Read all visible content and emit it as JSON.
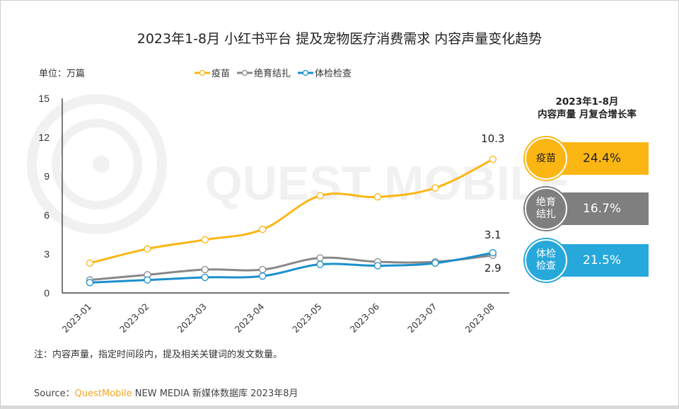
{
  "title": "2023年1-8月 小红书平台 提及宠物医疗消费需求 内容声量变化趋势",
  "unit_label": "单位：万篇",
  "side_panel": {
    "title_line1": "2023年1-8月",
    "title_line2": "内容声量 月复合增长率",
    "badges": [
      {
        "label_line1": "疫苗",
        "label_line2": "",
        "value": "24.4%",
        "color": "#fbb614",
        "text_color": "#222222"
      },
      {
        "label_line1": "绝育",
        "label_line2": "结扎",
        "value": "16.7%",
        "color": "#7f7f7f",
        "text_color": "#ffffff"
      },
      {
        "label_line1": "体检",
        "label_line2": "检查",
        "value": "21.5%",
        "color": "#27a8db",
        "text_color": "#ffffff"
      }
    ]
  },
  "note": "注：内容声量，指定时间段内，提及相关关键词的发文数量。",
  "source": {
    "prefix": "Source：",
    "brand": "QuestMobile",
    "rest": " NEW MEDIA 新媒体数据库 2023年8月"
  },
  "watermark": "QUEST MOBILE",
  "chart_data": {
    "type": "line",
    "title": "2023年1-8月 小红书平台 提及宠物医疗消费需求 内容声量变化趋势",
    "xlabel": "",
    "ylabel": "单位：万篇",
    "categories": [
      "2023-01",
      "2023-02",
      "2023-03",
      "2023-04",
      "2023-05",
      "2023-06",
      "2023-07",
      "2023-08"
    ],
    "yticks": [
      0,
      3,
      6,
      9,
      12,
      15
    ],
    "ytick_labels": [
      "0",
      "3",
      "6",
      "9",
      "12",
      "15"
    ],
    "ylim": [
      0,
      15
    ],
    "grid": false,
    "legend_position": "top",
    "series": [
      {
        "name": "疫苗",
        "color": "#fbb614",
        "values": [
          2.3,
          3.4,
          4.1,
          4.9,
          7.5,
          7.4,
          8.1,
          10.3
        ],
        "end_label": "10.3"
      },
      {
        "name": "绝育结扎",
        "color": "#888888",
        "values": [
          1.0,
          1.4,
          1.8,
          1.8,
          2.7,
          2.4,
          2.4,
          2.9
        ],
        "end_label": "2.9"
      },
      {
        "name": "体检检查",
        "color": "#1a8fcc",
        "values": [
          0.8,
          1.0,
          1.2,
          1.3,
          2.2,
          2.1,
          2.3,
          3.1
        ],
        "end_label": "3.1"
      }
    ]
  }
}
